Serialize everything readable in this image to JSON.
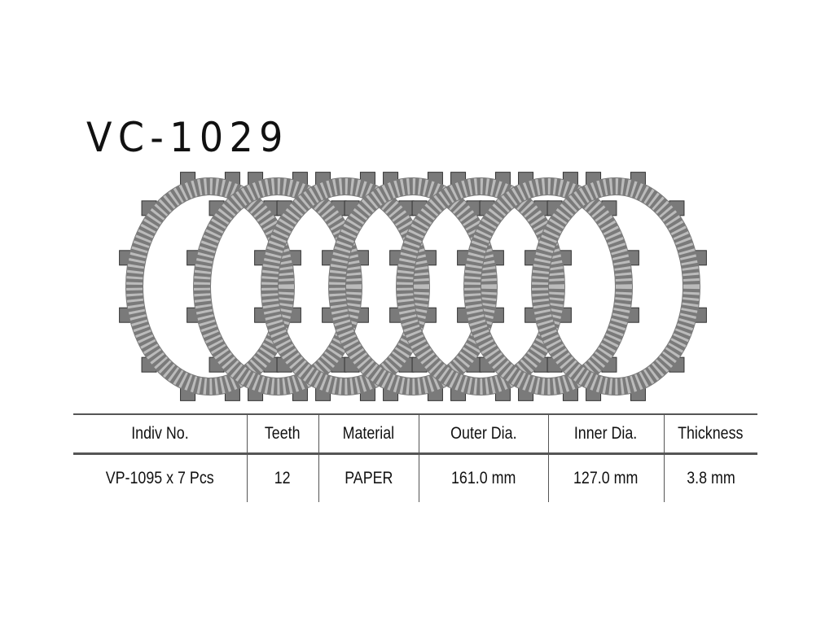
{
  "title": "VC-1029",
  "image": {
    "description_icon": "clutch-plates-icon",
    "plate_count": 7,
    "plate_color": "#7a7a7a"
  },
  "table": {
    "headers": [
      "Indiv No.",
      "Teeth",
      "Material",
      "Outer Dia.",
      "Inner Dia.",
      "Thickness"
    ],
    "rows": [
      [
        "VP-1095 x 7 Pcs",
        "12",
        "PAPER",
        "161.0 mm",
        "127.0 mm",
        "3.8 mm"
      ]
    ]
  }
}
